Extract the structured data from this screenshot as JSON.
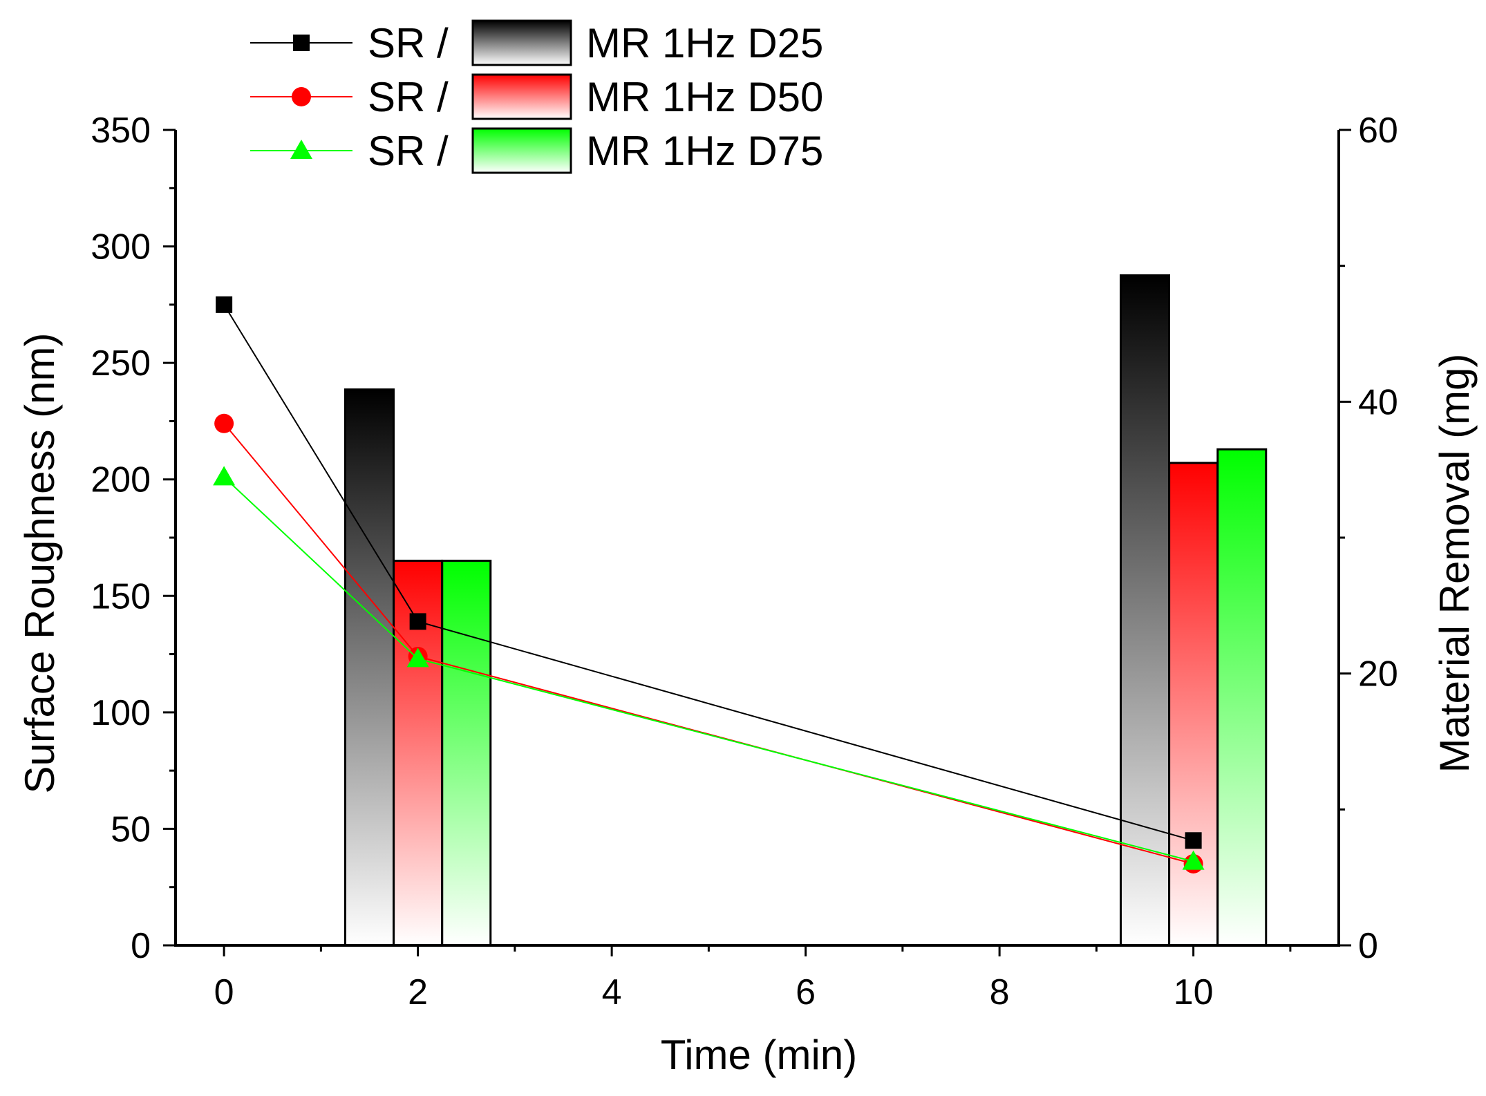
{
  "chart_data": {
    "type": "bar+line",
    "xlabel": "Time (min)",
    "ylabel_left": "Surface Roughness (nm)",
    "ylabel_right": "Material Removal (mg)",
    "xlim": [
      -0.5,
      11.5
    ],
    "ylim_left": [
      0,
      350
    ],
    "ylim_right": [
      0,
      60
    ],
    "x_ticks": [
      0,
      2,
      4,
      6,
      8,
      10
    ],
    "x_tick_labels": [
      "0",
      "2",
      "4",
      "6",
      "8",
      "10"
    ],
    "y_left_ticks": [
      0,
      50,
      100,
      150,
      200,
      250,
      300,
      350
    ],
    "y_left_tick_labels": [
      "0",
      "50",
      "100",
      "150",
      "200",
      "250",
      "300",
      "350"
    ],
    "y_right_ticks": [
      0,
      20,
      40,
      60
    ],
    "y_right_tick_labels": [
      "0",
      "20",
      "40",
      "60"
    ],
    "grid": false,
    "legend_position": "top-left",
    "legend_prefix": "SR /",
    "series": [
      {
        "name": "MR 1Hz D25",
        "color": "#000000",
        "marker": "square",
        "line": {
          "x": [
            0,
            2,
            10
          ],
          "y": [
            275,
            139,
            45
          ]
        },
        "bars": {
          "x": [
            2,
            10
          ],
          "y": [
            40.9,
            49.3
          ],
          "offset": -0.5
        }
      },
      {
        "name": "MR 1Hz D50",
        "color": "#ff0000",
        "marker": "circle",
        "line": {
          "x": [
            0,
            2,
            10
          ],
          "y": [
            224,
            124,
            35
          ]
        },
        "bars": {
          "x": [
            2,
            10
          ],
          "y": [
            28.3,
            35.5
          ],
          "offset": 0
        }
      },
      {
        "name": "MR 1Hz D75",
        "color": "#00ff00",
        "marker": "triangle",
        "line": {
          "x": [
            0,
            2,
            10
          ],
          "y": [
            201,
            123,
            36
          ]
        },
        "bars": {
          "x": [
            2,
            10
          ],
          "y": [
            28.3,
            36.5
          ],
          "offset": 0.5
        }
      }
    ]
  }
}
